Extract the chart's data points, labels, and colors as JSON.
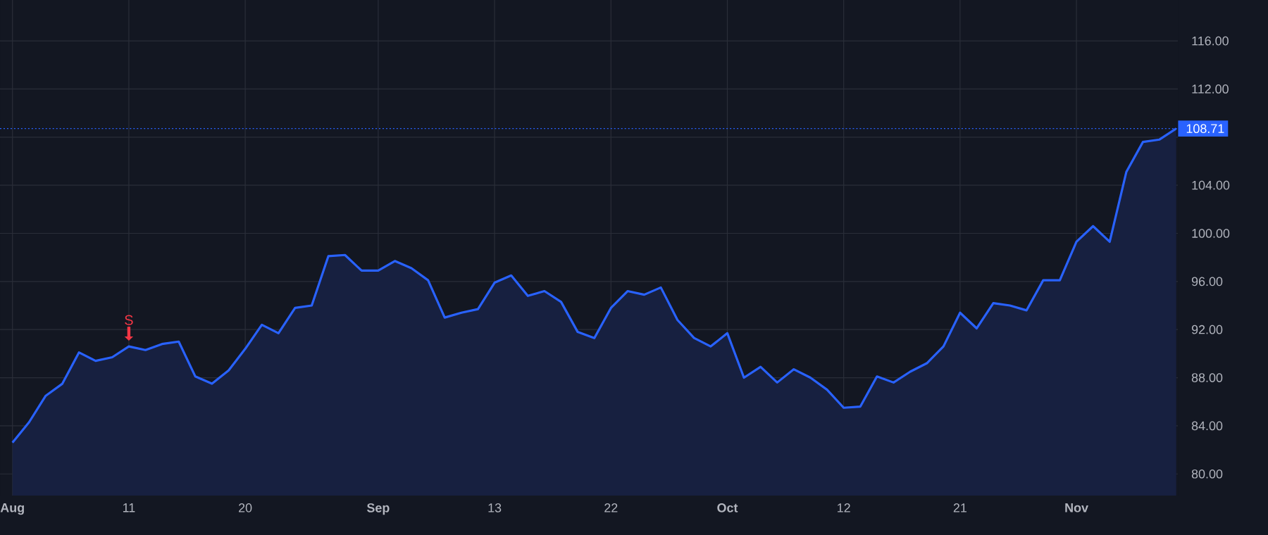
{
  "chart_data": {
    "type": "area",
    "categories": [
      "Aug",
      null,
      null,
      null,
      null,
      null,
      null,
      "11",
      null,
      null,
      null,
      null,
      null,
      null,
      "20",
      null,
      null,
      null,
      null,
      null,
      null,
      null,
      "Sep",
      null,
      null,
      null,
      null,
      null,
      null,
      "13",
      null,
      null,
      null,
      null,
      null,
      null,
      "22",
      null,
      null,
      null,
      null,
      null,
      null,
      "Oct",
      null,
      null,
      null,
      null,
      null,
      null,
      "12",
      null,
      null,
      null,
      null,
      null,
      null,
      "21",
      null,
      null,
      null,
      null,
      null,
      null,
      "Nov",
      null,
      null,
      null,
      null,
      null,
      null
    ],
    "series": [
      {
        "color": "#2962ff",
        "values": [
          82.6,
          84.3,
          86.5,
          87.5,
          90.1,
          89.4,
          89.7,
          90.6,
          90.3,
          90.8,
          91.0,
          88.1,
          87.5,
          88.6,
          90.4,
          92.4,
          91.7,
          93.8,
          94.0,
          98.1,
          98.2,
          96.9,
          96.9,
          97.7,
          97.1,
          96.1,
          93.0,
          93.4,
          93.7,
          95.9,
          96.5,
          94.8,
          95.2,
          94.3,
          91.8,
          91.3,
          93.8,
          95.2,
          94.9,
          95.5,
          92.8,
          91.3,
          90.6,
          91.7,
          88.0,
          88.9,
          87.6,
          88.7,
          88.0,
          87.0,
          85.5,
          85.6,
          88.1,
          87.6,
          88.5,
          89.2,
          90.6,
          93.4,
          92.1,
          94.2,
          94.0,
          93.6,
          96.1,
          96.1,
          99.3,
          100.6,
          99.3,
          105.1,
          107.6,
          107.8,
          108.71
        ]
      }
    ],
    "ylim": [
      78.2,
      119.4
    ],
    "yticks": [
      {
        "value": 80,
        "label": "80.00"
      },
      {
        "value": 84,
        "label": "84.00"
      },
      {
        "value": 88,
        "label": "88.00"
      },
      {
        "value": 92,
        "label": "92.00"
      },
      {
        "value": 96,
        "label": "96.00"
      },
      {
        "value": 100,
        "label": "100.00"
      },
      {
        "value": 104,
        "label": "104.00"
      },
      {
        "value": 108,
        "label": null
      },
      {
        "value": 112,
        "label": "112.00"
      },
      {
        "value": 116,
        "label": "116.00"
      }
    ],
    "grid": true,
    "ref_lines": [
      {
        "axis": "y",
        "value": 108.71,
        "label": "108.71",
        "color": "#2962ff",
        "line_style": "dotted"
      }
    ],
    "annotations": [
      {
        "text": "S",
        "x": "11",
        "y": 90.6
      }
    ]
  }
}
